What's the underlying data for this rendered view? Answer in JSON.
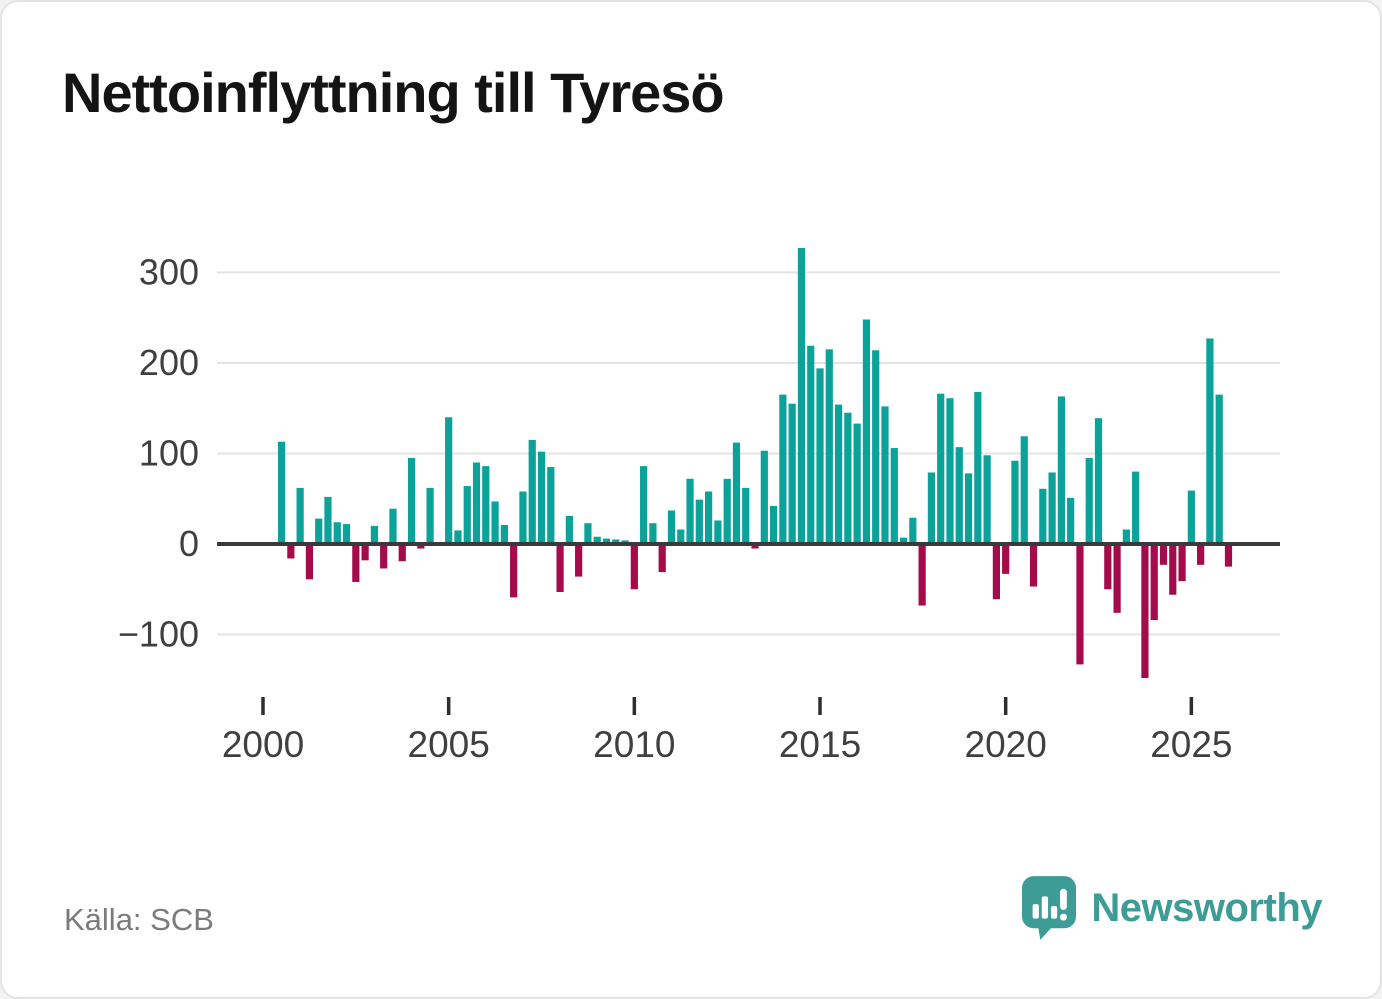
{
  "title": "Nettoinflyttning till Tyresö",
  "source": "Källa: SCB",
  "branding": {
    "logo_text": "Newsworthy",
    "logo_icon": "bar-chart-exclamation-icon",
    "brand_color": "#3d9d96"
  },
  "colors": {
    "positive_bar": "#0ba29a",
    "negative_bar": "#a50b4a",
    "gridline": "#e4e4e4",
    "zero_line": "#3a3a3a",
    "axis_text": "#3f3f3f",
    "tick_mark": "#2e2e2e",
    "title_text": "#141414",
    "source_text": "#7b7b7b"
  },
  "chart_data": {
    "type": "bar",
    "title": "Nettoinflyttning till Tyresö",
    "xlabel": "",
    "ylabel": "",
    "legend": "none",
    "grid": "horizontal",
    "ylim": [
      -160,
      345
    ],
    "yticks": [
      300,
      200,
      100,
      0,
      -100
    ],
    "xtick_years": [
      2000,
      2005,
      2010,
      2015,
      2020,
      2025
    ],
    "first_quarter_offset": 2,
    "categories": [
      "2000 Q3",
      "2000 Q4",
      "2001 Q1",
      "2001 Q2",
      "2001 Q3",
      "2001 Q4",
      "2002 Q1",
      "2002 Q2",
      "2002 Q3",
      "2002 Q4",
      "2003 Q1",
      "2003 Q2",
      "2003 Q3",
      "2003 Q4",
      "2004 Q1",
      "2004 Q2",
      "2004 Q3",
      "2004 Q4",
      "2005 Q1",
      "2005 Q2",
      "2005 Q3",
      "2005 Q4",
      "2006 Q1",
      "2006 Q2",
      "2006 Q3",
      "2006 Q4",
      "2007 Q1",
      "2007 Q2",
      "2007 Q3",
      "2007 Q4",
      "2008 Q1",
      "2008 Q2",
      "2008 Q3",
      "2008 Q4",
      "2009 Q1",
      "2009 Q2",
      "2009 Q3",
      "2009 Q4",
      "2010 Q1",
      "2010 Q2",
      "2010 Q3",
      "2010 Q4",
      "2011 Q1",
      "2011 Q2",
      "2011 Q3",
      "2011 Q4",
      "2012 Q1",
      "2012 Q2",
      "2012 Q3",
      "2012 Q4",
      "2013 Q1",
      "2013 Q2",
      "2013 Q3",
      "2013 Q4",
      "2014 Q1",
      "2014 Q2",
      "2014 Q3",
      "2014 Q4",
      "2015 Q1",
      "2015 Q2",
      "2015 Q3",
      "2015 Q4",
      "2016 Q1",
      "2016 Q2",
      "2016 Q3",
      "2016 Q4",
      "2017 Q1",
      "2017 Q2",
      "2017 Q3",
      "2017 Q4",
      "2018 Q1",
      "2018 Q2",
      "2018 Q3",
      "2018 Q4",
      "2019 Q1",
      "2019 Q2",
      "2019 Q3",
      "2019 Q4",
      "2020 Q1",
      "2020 Q2",
      "2020 Q3",
      "2020 Q4",
      "2021 Q1",
      "2021 Q2",
      "2021 Q3",
      "2021 Q4",
      "2022 Q1",
      "2022 Q2",
      "2022 Q3",
      "2022 Q4",
      "2023 Q1",
      "2023 Q2",
      "2023 Q3",
      "2023 Q4",
      "2024 Q1",
      "2024 Q2",
      "2024 Q3",
      "2024 Q4",
      "2025 Q1",
      "2025 Q2",
      "2025 Q3",
      "2025 Q4",
      "2026 Q1"
    ],
    "values": [
      113,
      -16,
      62,
      -39,
      28,
      52,
      24,
      22,
      -42,
      -18,
      20,
      -27,
      39,
      -19,
      95,
      -5,
      62,
      0,
      140,
      15,
      64,
      90,
      86,
      47,
      21,
      -59,
      58,
      115,
      102,
      85,
      -53,
      31,
      -36,
      23,
      8,
      6,
      5,
      4,
      -50,
      86,
      23,
      -31,
      37,
      16,
      72,
      49,
      58,
      26,
      72,
      112,
      62,
      -5,
      103,
      42,
      165,
      155,
      327,
      219,
      194,
      215,
      154,
      145,
      133,
      248,
      214,
      152,
      106,
      7,
      29,
      -68,
      79,
      166,
      161,
      107,
      78,
      168,
      98,
      -61,
      -33,
      92,
      119,
      -47,
      61,
      79,
      163,
      51,
      -133,
      95,
      139,
      -50,
      -76,
      16,
      80,
      -148,
      -84,
      -23,
      -56,
      -41,
      59,
      -23,
      227,
      165,
      -25
    ]
  }
}
